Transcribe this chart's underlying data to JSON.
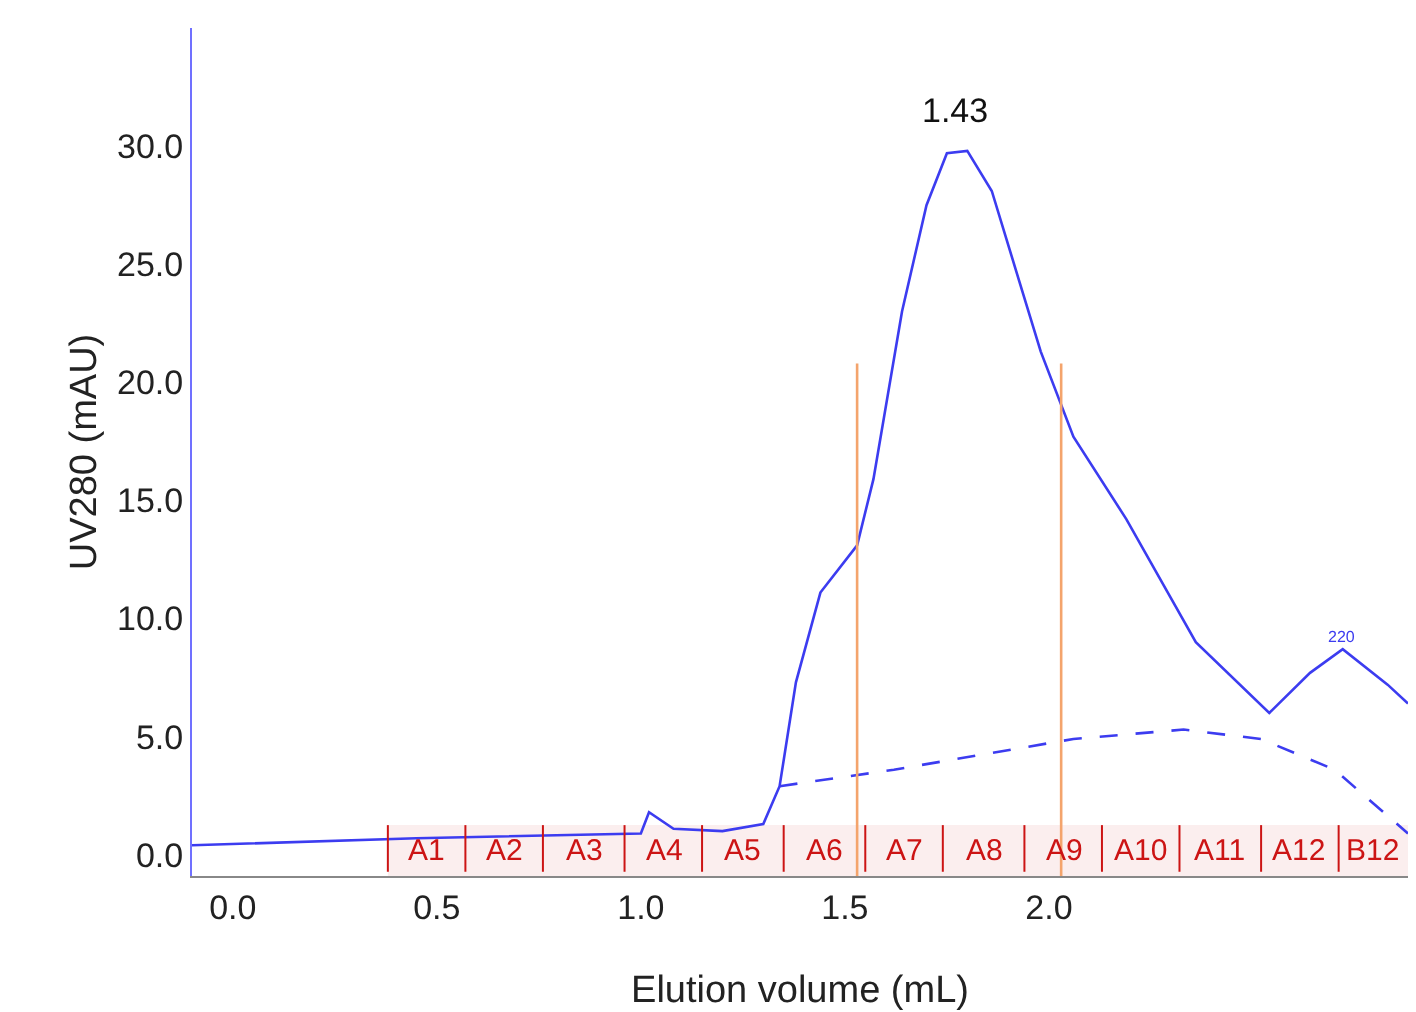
{
  "chart_data": {
    "type": "line",
    "xlabel": "Elution volume (mL)",
    "ylabel": "UV280 (mAU)",
    "xlim": [
      -0.1,
      2.88
    ],
    "ylim": [
      -0.9,
      35
    ],
    "xticks": [
      {
        "value": 0,
        "label": "0.0"
      },
      {
        "value": 0.5,
        "label": "0.5"
      },
      {
        "value": 1,
        "label": "1.0"
      },
      {
        "value": 1.5,
        "label": "1.5"
      },
      {
        "value": 2,
        "label": "2.0"
      }
    ],
    "yticks": [
      {
        "value": 0,
        "label": "0.0"
      },
      {
        "value": 5,
        "label": "5.0"
      },
      {
        "value": 10,
        "label": "10.0"
      },
      {
        "value": 15,
        "label": "15.0"
      },
      {
        "value": 20,
        "label": "20.0"
      },
      {
        "value": 25,
        "label": "25.0"
      },
      {
        "value": 30,
        "label": "30.0"
      }
    ],
    "grid": false,
    "legend": false,
    "marker": "none",
    "series": [
      {
        "color": "#3c3cf0",
        "line_style": "solid",
        "x": [
          -0.1,
          0.45,
          1.0,
          1.02,
          1.08,
          1.2,
          1.3,
          1.34,
          1.38,
          1.44,
          1.53,
          1.57,
          1.64,
          1.7,
          1.75,
          1.8,
          1.86,
          1.92,
          1.98,
          2.06,
          2.19,
          2.36,
          2.54,
          2.64,
          2.72,
          2.83,
          2.88
        ],
        "values": [
          0.4,
          0.7,
          0.9,
          1.8,
          1.1,
          1.0,
          1.3,
          2.9,
          7.3,
          11.1,
          13.1,
          15.9,
          23.0,
          27.5,
          29.7,
          29.8,
          28.1,
          24.7,
          21.3,
          17.7,
          14.2,
          9.0,
          6.0,
          7.7,
          8.7,
          7.2,
          6.4
        ]
      },
      {
        "color": "#3c3cf0",
        "line_style": "dashed",
        "x": [
          1.34,
          1.62,
          2.06,
          2.33,
          2.52,
          2.7,
          2.88
        ],
        "values": [
          2.9,
          3.6,
          4.9,
          5.3,
          4.9,
          3.6,
          0.9
        ]
      },
      {
        "color": "#f4a46c",
        "line_style": "solid",
        "x": [
          1.53,
          1.53
        ],
        "values": [
          -0.9,
          20.8
        ]
      },
      {
        "color": "#f4a46c",
        "line_style": "solid",
        "x": [
          2.03,
          2.03
        ],
        "values": [
          -0.9,
          20.8
        ]
      }
    ],
    "annotations": [
      {
        "text": "1.43",
        "x": 1.77,
        "y": 29.8
      },
      {
        "text": "220",
        "x": 2.72,
        "y": 8.7
      }
    ],
    "bands": [
      {
        "axis": "x",
        "from": 0.38,
        "to": 0.57,
        "label": "A1",
        "color": "#cc1414"
      },
      {
        "axis": "x",
        "from": 0.57,
        "to": 0.76,
        "label": "A2",
        "color": "#cc1414"
      },
      {
        "axis": "x",
        "from": 0.76,
        "to": 0.96,
        "label": "A3",
        "color": "#cc1414"
      },
      {
        "axis": "x",
        "from": 0.96,
        "to": 1.15,
        "label": "A4",
        "color": "#cc1414"
      },
      {
        "axis": "x",
        "from": 1.15,
        "to": 1.35,
        "label": "A5",
        "color": "#cc1414"
      },
      {
        "axis": "x",
        "from": 1.35,
        "to": 1.55,
        "label": "A6",
        "color": "#cc1414"
      },
      {
        "axis": "x",
        "from": 1.55,
        "to": 1.74,
        "label": "A7",
        "color": "#cc1414"
      },
      {
        "axis": "x",
        "from": 1.74,
        "to": 1.94,
        "label": "A8",
        "color": "#cc1414"
      },
      {
        "axis": "x",
        "from": 1.94,
        "to": 2.13,
        "label": "A9",
        "color": "#cc1414"
      },
      {
        "axis": "x",
        "from": 2.13,
        "to": 2.32,
        "label": "A10",
        "color": "#cc1414"
      },
      {
        "axis": "x",
        "from": 2.32,
        "to": 2.52,
        "label": "A11",
        "color": "#cc1414"
      },
      {
        "axis": "x",
        "from": 2.52,
        "to": 2.71,
        "label": "A12",
        "color": "#cc1414"
      },
      {
        "axis": "x",
        "from": 2.71,
        "to": 2.88,
        "label": "B12",
        "color": "#cc1414"
      }
    ]
  }
}
